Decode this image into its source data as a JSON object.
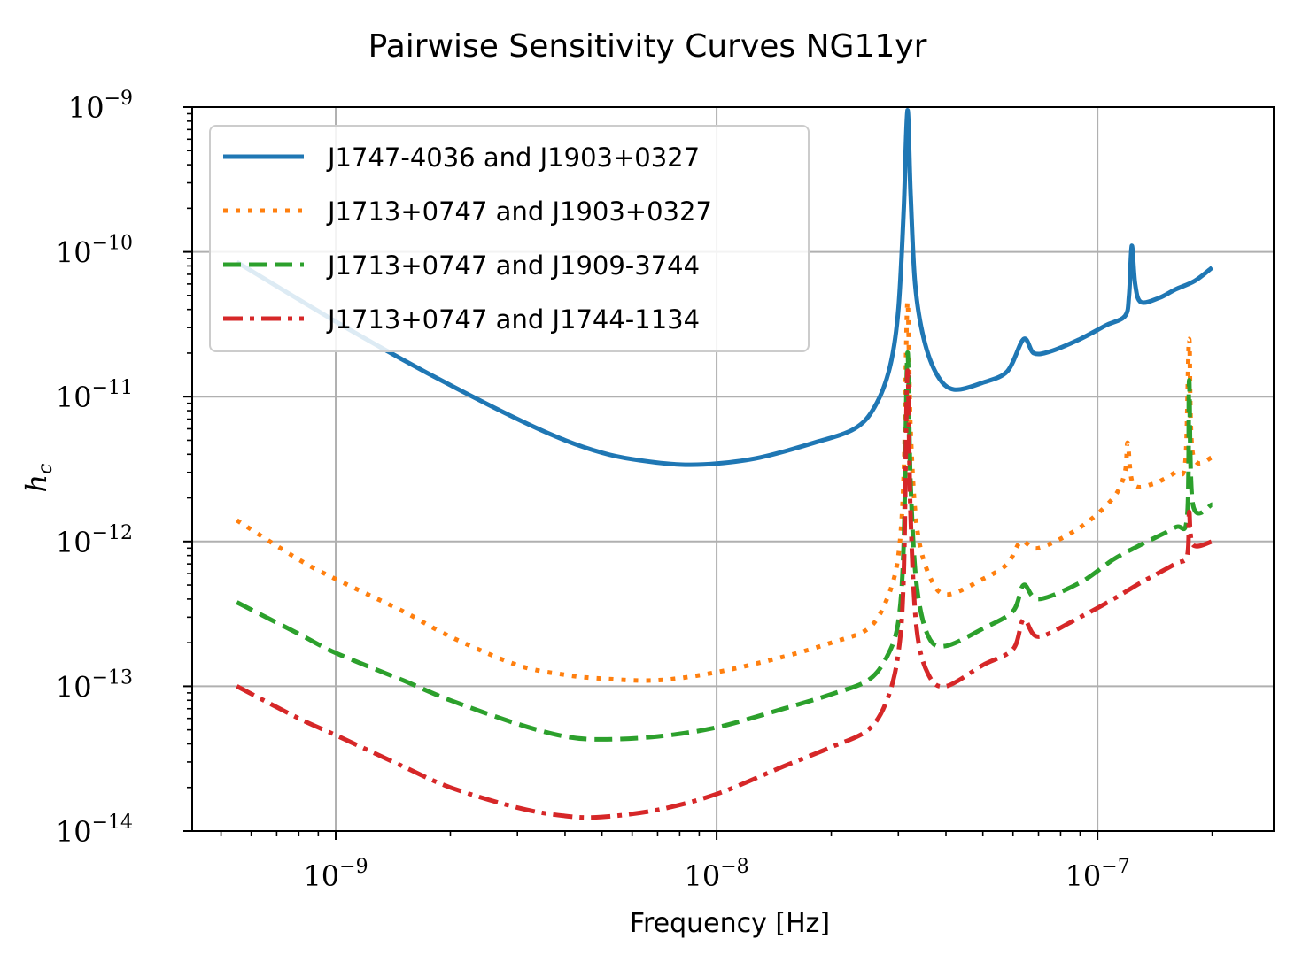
{
  "chart_data": {
    "type": "line",
    "title": "Pairwise Sensitivity Curves NG11yr",
    "xlabel": "Frequency [Hz]",
    "ylabel": "h_c",
    "x_scale": "log",
    "y_scale": "log",
    "xlim": [
      4.2e-10,
      2.9e-07
    ],
    "ylim": [
      1e-14,
      1e-09
    ],
    "x_ticks": [
      {
        "value": 1e-09,
        "base": "10",
        "exp": "−9"
      },
      {
        "value": 1e-08,
        "base": "10",
        "exp": "−8"
      },
      {
        "value": 1e-07,
        "base": "10",
        "exp": "−7"
      }
    ],
    "y_ticks": [
      {
        "value": 1e-09,
        "base": "10",
        "exp": "−9"
      },
      {
        "value": 1e-10,
        "base": "10",
        "exp": "−10"
      },
      {
        "value": 1e-11,
        "base": "10",
        "exp": "−11"
      },
      {
        "value": 1e-12,
        "base": "10",
        "exp": "−12"
      },
      {
        "value": 1e-13,
        "base": "10",
        "exp": "−13"
      },
      {
        "value": 1e-14,
        "base": "10",
        "exp": "−14"
      }
    ],
    "grid": true,
    "legend_position": "top-left",
    "series": [
      {
        "name": "J1747-4036 and J1903+0327",
        "color": "#1f77b4",
        "dash": "solid",
        "points": [
          [
            5.5e-10,
            8.5e-11
          ],
          [
            1e-09,
            3.3e-11
          ],
          [
            1.5e-09,
            1.8e-11
          ],
          [
            2e-09,
            1.2e-11
          ],
          [
            3e-09,
            7e-12
          ],
          [
            4e-09,
            5e-12
          ],
          [
            5e-09,
            4.1e-12
          ],
          [
            6e-09,
            3.7e-12
          ],
          [
            8e-09,
            3.4e-12
          ],
          [
            1e-08,
            3.45e-12
          ],
          [
            1.3e-08,
            3.8e-12
          ],
          [
            1.8e-08,
            4.8e-12
          ],
          [
            2.3e-08,
            6e-12
          ],
          [
            2.6e-08,
            8.5e-12
          ],
          [
            2.85e-08,
            1.6e-11
          ],
          [
            3e-08,
            4e-11
          ],
          [
            3.1e-08,
            2e-10
          ],
          [
            3.17e-08,
            9.5e-10
          ],
          [
            3.23e-08,
            2.5e-10
          ],
          [
            3.32e-08,
            6e-11
          ],
          [
            3.5e-08,
            2.5e-11
          ],
          [
            3.8e-08,
            1.4e-11
          ],
          [
            4.2e-08,
            1.12e-11
          ],
          [
            5e-08,
            1.25e-11
          ],
          [
            5.8e-08,
            1.5e-11
          ],
          [
            6.4e-08,
            2.5e-11
          ],
          [
            6.8e-08,
            2e-11
          ],
          [
            7.5e-08,
            2.05e-11
          ],
          [
            9e-08,
            2.5e-11
          ],
          [
            1.05e-07,
            3.1e-11
          ],
          [
            1.18e-07,
            3.6e-11
          ],
          [
            1.21e-07,
            5e-11
          ],
          [
            1.23e-07,
            1.1e-10
          ],
          [
            1.255e-07,
            6e-11
          ],
          [
            1.3e-07,
            4.5e-11
          ],
          [
            1.45e-07,
            4.8e-11
          ],
          [
            1.6e-07,
            5.5e-11
          ],
          [
            1.8e-07,
            6.3e-11
          ],
          [
            2e-07,
            7.8e-11
          ]
        ]
      },
      {
        "name": "J1713+0747 and J1903+0327",
        "color": "#ff7f0e",
        "dash": "dotted",
        "points": [
          [
            5.5e-10,
            1.4e-12
          ],
          [
            8e-10,
            7.5e-13
          ],
          [
            1e-09,
            5.5e-13
          ],
          [
            1.5e-09,
            3.3e-13
          ],
          [
            2e-09,
            2.2e-13
          ],
          [
            3e-09,
            1.4e-13
          ],
          [
            4e-09,
            1.2e-13
          ],
          [
            5e-09,
            1.13e-13
          ],
          [
            7e-09,
            1.1e-13
          ],
          [
            1e-08,
            1.25e-13
          ],
          [
            1.5e-08,
            1.6e-13
          ],
          [
            2e-08,
            2e-13
          ],
          [
            2.5e-08,
            2.5e-13
          ],
          [
            2.8e-08,
            4e-13
          ],
          [
            3e-08,
            8e-13
          ],
          [
            3.1e-08,
            3e-12
          ],
          [
            3.17e-08,
            4.5e-11
          ],
          [
            3.23e-08,
            6e-12
          ],
          [
            3.35e-08,
            1.3e-12
          ],
          [
            3.6e-08,
            6e-13
          ],
          [
            4e-08,
            4.3e-13
          ],
          [
            5e-08,
            5.5e-13
          ],
          [
            5.8e-08,
            7e-13
          ],
          [
            6.3e-08,
            1e-12
          ],
          [
            7e-08,
            9e-13
          ],
          [
            9e-08,
            1.25e-12
          ],
          [
            1.1e-07,
            2e-12
          ],
          [
            1.18e-07,
            3e-12
          ],
          [
            1.2e-07,
            4.8e-12
          ],
          [
            1.24e-07,
            2.5e-12
          ],
          [
            1.4e-07,
            2.5e-12
          ],
          [
            1.6e-07,
            3e-12
          ],
          [
            1.7e-07,
            3.5e-12
          ],
          [
            1.74e-07,
            2.5e-11
          ],
          [
            1.78e-07,
            4e-12
          ],
          [
            2e-07,
            3.8e-12
          ]
        ]
      },
      {
        "name": "J1713+0747 and J1909-3744",
        "color": "#2ca02c",
        "dash": "dashed",
        "points": [
          [
            5.5e-10,
            3.8e-13
          ],
          [
            8e-10,
            2.3e-13
          ],
          [
            1e-09,
            1.7e-13
          ],
          [
            1.5e-09,
            1.1e-13
          ],
          [
            2e-09,
            8e-14
          ],
          [
            3e-09,
            5.5e-14
          ],
          [
            4e-09,
            4.5e-14
          ],
          [
            5e-09,
            4.3e-14
          ],
          [
            7e-09,
            4.5e-14
          ],
          [
            1e-08,
            5.2e-14
          ],
          [
            1.5e-08,
            7e-14
          ],
          [
            2e-08,
            8.8e-14
          ],
          [
            2.5e-08,
            1.1e-13
          ],
          [
            2.8e-08,
            1.6e-13
          ],
          [
            3e-08,
            2.8e-13
          ],
          [
            3.1e-08,
            1e-12
          ],
          [
            3.17e-08,
            2e-11
          ],
          [
            3.23e-08,
            2.5e-12
          ],
          [
            3.35e-08,
            5e-13
          ],
          [
            3.6e-08,
            2.2e-13
          ],
          [
            4e-08,
            1.9e-13
          ],
          [
            5e-08,
            2.5e-13
          ],
          [
            6e-08,
            3.3e-13
          ],
          [
            6.4e-08,
            5e-13
          ],
          [
            7e-08,
            4e-13
          ],
          [
            9e-08,
            5.2e-13
          ],
          [
            1.1e-07,
            7.5e-13
          ],
          [
            1.3e-07,
            9.5e-13
          ],
          [
            1.6e-07,
            1.25e-12
          ],
          [
            1.72e-07,
            1.5e-12
          ],
          [
            1.74e-07,
            1.3e-11
          ],
          [
            1.78e-07,
            1.8e-12
          ],
          [
            2e-07,
            1.8e-12
          ]
        ]
      },
      {
        "name": "J1713+0747 and J1744-1134",
        "color": "#d62728",
        "dash": "dashdot",
        "points": [
          [
            5.5e-10,
            1e-13
          ],
          [
            8e-10,
            6e-14
          ],
          [
            1e-09,
            4.6e-14
          ],
          [
            1.5e-09,
            2.8e-14
          ],
          [
            2e-09,
            2e-14
          ],
          [
            3e-09,
            1.45e-14
          ],
          [
            4e-09,
            1.27e-14
          ],
          [
            5e-09,
            1.25e-14
          ],
          [
            7e-09,
            1.4e-14
          ],
          [
            1e-08,
            1.8e-14
          ],
          [
            1.5e-08,
            2.8e-14
          ],
          [
            2e-08,
            3.8e-14
          ],
          [
            2.5e-08,
            5e-14
          ],
          [
            2.8e-08,
            8e-14
          ],
          [
            3e-08,
            1.7e-13
          ],
          [
            3.1e-08,
            6e-13
          ],
          [
            3.17e-08,
            1.5e-11
          ],
          [
            3.23e-08,
            1.5e-12
          ],
          [
            3.35e-08,
            2.5e-13
          ],
          [
            3.6e-08,
            1.2e-13
          ],
          [
            4e-08,
            1e-13
          ],
          [
            5e-08,
            1.4e-13
          ],
          [
            6e-08,
            1.8e-13
          ],
          [
            6.4e-08,
            2.9e-13
          ],
          [
            7e-08,
            2.2e-13
          ],
          [
            9e-08,
            3e-13
          ],
          [
            1.1e-07,
            4e-13
          ],
          [
            1.3e-07,
            5.2e-13
          ],
          [
            1.6e-07,
            7e-13
          ],
          [
            1.72e-07,
            8e-13
          ],
          [
            1.74e-07,
            1.6e-12
          ],
          [
            1.78e-07,
            9.5e-13
          ],
          [
            2e-07,
            1e-12
          ]
        ]
      }
    ]
  }
}
